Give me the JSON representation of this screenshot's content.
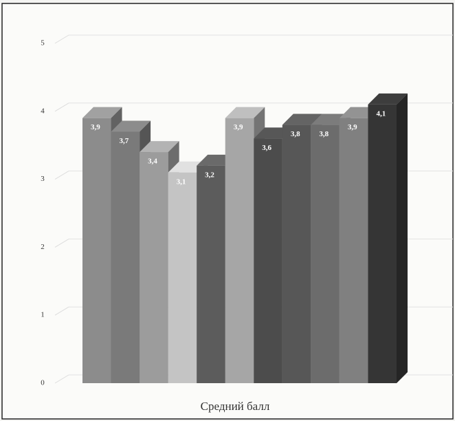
{
  "chart_data": {
    "type": "bar3d",
    "x_label": "Средний балл",
    "values": [
      3.9,
      3.7,
      3.4,
      3.1,
      3.2,
      3.9,
      3.6,
      3.8,
      3.8,
      3.9,
      4.1
    ],
    "value_labels": [
      "3,9",
      "3,7",
      "3,4",
      "3,1",
      "3,2",
      "3,9",
      "3,6",
      "3,8",
      "3,8",
      "3,9",
      "4,1"
    ],
    "colors": [
      "#8c8c8c",
      "#7a7a7a",
      "#9c9c9c",
      "#c4c4c4",
      "#5c5c5c",
      "#a6a6a6",
      "#4c4c4c",
      "#575757",
      "#6c6c6c",
      "#808080",
      "#353535"
    ],
    "ylim": [
      0,
      5
    ],
    "yticks": [
      0,
      1,
      2,
      3,
      4,
      5
    ],
    "grid": true
  }
}
